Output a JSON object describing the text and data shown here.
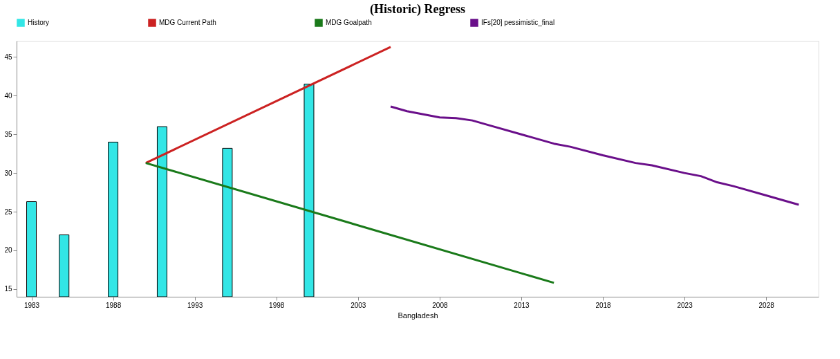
{
  "chart_data": {
    "type": "bar",
    "title": "(Historic) Regress",
    "xlabel": "Bangladesh",
    "xlim": [
      1982.3,
      2031
    ],
    "xticks": [
      1983,
      1988,
      1993,
      1998,
      2003,
      2008,
      2013,
      2018,
      2023,
      2028
    ],
    "ylim": [
      14,
      47.1
    ],
    "yticks": [
      15,
      20,
      25,
      30,
      35,
      40,
      45
    ],
    "legend": "top",
    "grid": false,
    "series": [
      {
        "name": "History",
        "color": "#33e6e6",
        "x": [
          1983,
          1985,
          1988,
          1991,
          1995,
          2000
        ],
        "values": [
          26.3,
          22,
          34,
          36,
          33.2,
          41.5
        ]
      },
      {
        "name": "MDG Current Path",
        "type": "line",
        "color": "#cc2222",
        "x": [
          1990,
          2005
        ],
        "values": [
          31.3,
          46.3
        ]
      },
      {
        "name": "MDG Goalpath",
        "type": "line",
        "color": "#1a7a1a",
        "x": [
          1990,
          2015
        ],
        "values": [
          31.3,
          15.8
        ]
      },
      {
        "name": "IFs[20] pessimistic_final",
        "type": "line",
        "color": "#6a0f8a",
        "x": [
          2005,
          2006,
          2008,
          2009,
          2010,
          2011,
          2013,
          2015,
          2016,
          2018,
          2020,
          2021,
          2023,
          2024,
          2025,
          2026,
          2028,
          2029,
          2030
        ],
        "values": [
          38.6,
          38,
          37.2,
          37.1,
          36.8,
          36.2,
          35,
          33.8,
          33.4,
          32.3,
          31.3,
          31,
          30,
          29.6,
          28.8,
          28.3,
          27.1,
          26.5,
          25.9
        ]
      }
    ]
  }
}
